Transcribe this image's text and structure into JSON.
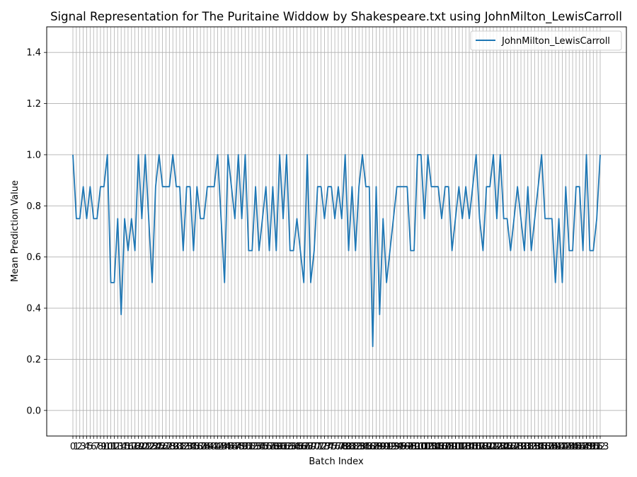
{
  "chart_data": {
    "type": "line",
    "title": "Signal Representation for The Puritaine Widdow by Shakespeare.txt using JohnMilton_LewisCarroll",
    "xlabel": "Batch Index",
    "ylabel": "Mean Prediction Value",
    "ylim": [
      -0.1,
      1.5
    ],
    "yticks": [
      0.0,
      0.2,
      0.4,
      0.6,
      0.8,
      1.0,
      1.2,
      1.4
    ],
    "grid": true,
    "legend_position": "top-right",
    "series": [
      {
        "name": "JohnMilton_LewisCarroll",
        "color": "#1f77b4",
        "values": [
          1.0,
          0.75,
          0.75,
          0.875,
          0.75,
          0.875,
          0.75,
          0.75,
          0.875,
          0.875,
          1.0,
          0.5,
          0.5,
          0.75,
          0.375,
          0.75,
          0.625,
          0.75,
          0.625,
          1.0,
          0.75,
          1.0,
          0.75,
          0.5,
          0.875,
          1.0,
          0.875,
          0.875,
          0.875,
          1.0,
          0.875,
          0.875,
          0.625,
          0.875,
          0.875,
          0.625,
          0.875,
          0.75,
          0.75,
          0.875,
          0.875,
          0.875,
          1.0,
          0.75,
          0.5,
          1.0,
          0.875,
          0.75,
          1.0,
          0.75,
          1.0,
          0.625,
          0.625,
          0.875,
          0.625,
          0.75,
          0.875,
          0.625,
          0.875,
          0.625,
          1.0,
          0.75,
          1.0,
          0.625,
          0.625,
          0.75,
          0.625,
          0.5,
          1.0,
          0.5,
          0.625,
          0.875,
          0.875,
          0.75,
          0.875,
          0.875,
          0.75,
          0.875,
          0.75,
          1.0,
          0.625,
          0.875,
          0.625,
          0.875,
          1.0,
          0.875,
          0.875,
          0.25,
          0.875,
          0.375,
          0.75,
          0.5,
          0.625,
          0.75,
          0.875,
          0.875,
          0.875,
          0.875,
          0.625,
          0.625,
          1.0,
          1.0,
          0.75,
          1.0,
          0.875,
          0.875,
          0.875,
          0.75,
          0.875,
          0.875,
          0.625,
          0.75,
          0.875,
          0.75,
          0.875,
          0.75,
          0.875,
          1.0,
          0.75,
          0.625,
          0.875,
          0.875,
          1.0,
          0.75,
          1.0,
          0.75,
          0.75,
          0.625,
          0.75,
          0.875,
          0.75,
          0.625,
          0.875,
          0.625,
          0.75,
          0.875,
          1.0,
          0.75,
          0.75,
          0.75,
          0.5,
          0.75,
          0.5,
          0.875,
          0.625,
          0.625,
          0.875,
          0.875,
          0.625,
          1.0,
          0.625,
          0.625,
          0.75,
          1.0
        ]
      }
    ]
  }
}
